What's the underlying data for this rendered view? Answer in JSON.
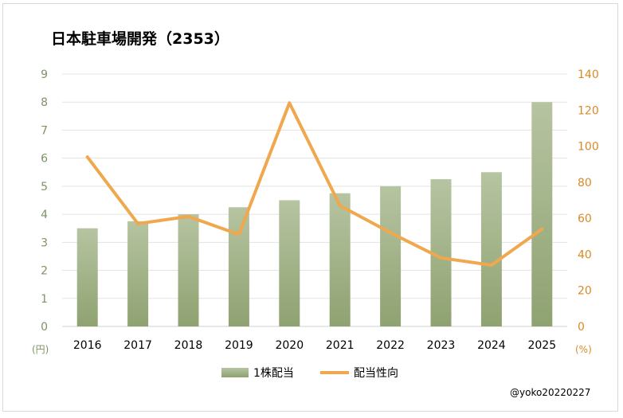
{
  "chart_data": {
    "type": "bar+line",
    "title": "日本駐車場開発（2353）",
    "categories": [
      "2016",
      "2017",
      "2018",
      "2019",
      "2020",
      "2021",
      "2022",
      "2023",
      "2024",
      "2025"
    ],
    "series": [
      {
        "name": "1株配当",
        "type": "bar",
        "axis": "left",
        "values": [
          3.5,
          3.75,
          4.0,
          4.25,
          4.5,
          4.75,
          5.0,
          5.25,
          5.5,
          8.0
        ],
        "color": "#9caf84"
      },
      {
        "name": "配当性向",
        "type": "line",
        "axis": "right",
        "values": [
          94,
          57,
          61,
          51,
          124,
          67,
          52,
          38,
          34,
          54
        ],
        "color": "#f0a84e"
      }
    ],
    "y_left": {
      "unit": "(円)",
      "range": [
        0,
        9
      ],
      "ticks": [
        "0",
        "1",
        "2",
        "3",
        "4",
        "5",
        "6",
        "7",
        "8",
        "9"
      ],
      "color": "#7f9365"
    },
    "y_right": {
      "unit": "(%)",
      "range": [
        0,
        140
      ],
      "ticks": [
        "0",
        "20",
        "40",
        "60",
        "80",
        "100",
        "120",
        "140"
      ],
      "color": "#d98a26"
    },
    "grid": true,
    "legend_position": "bottom"
  },
  "credit": "@yoko20220227"
}
